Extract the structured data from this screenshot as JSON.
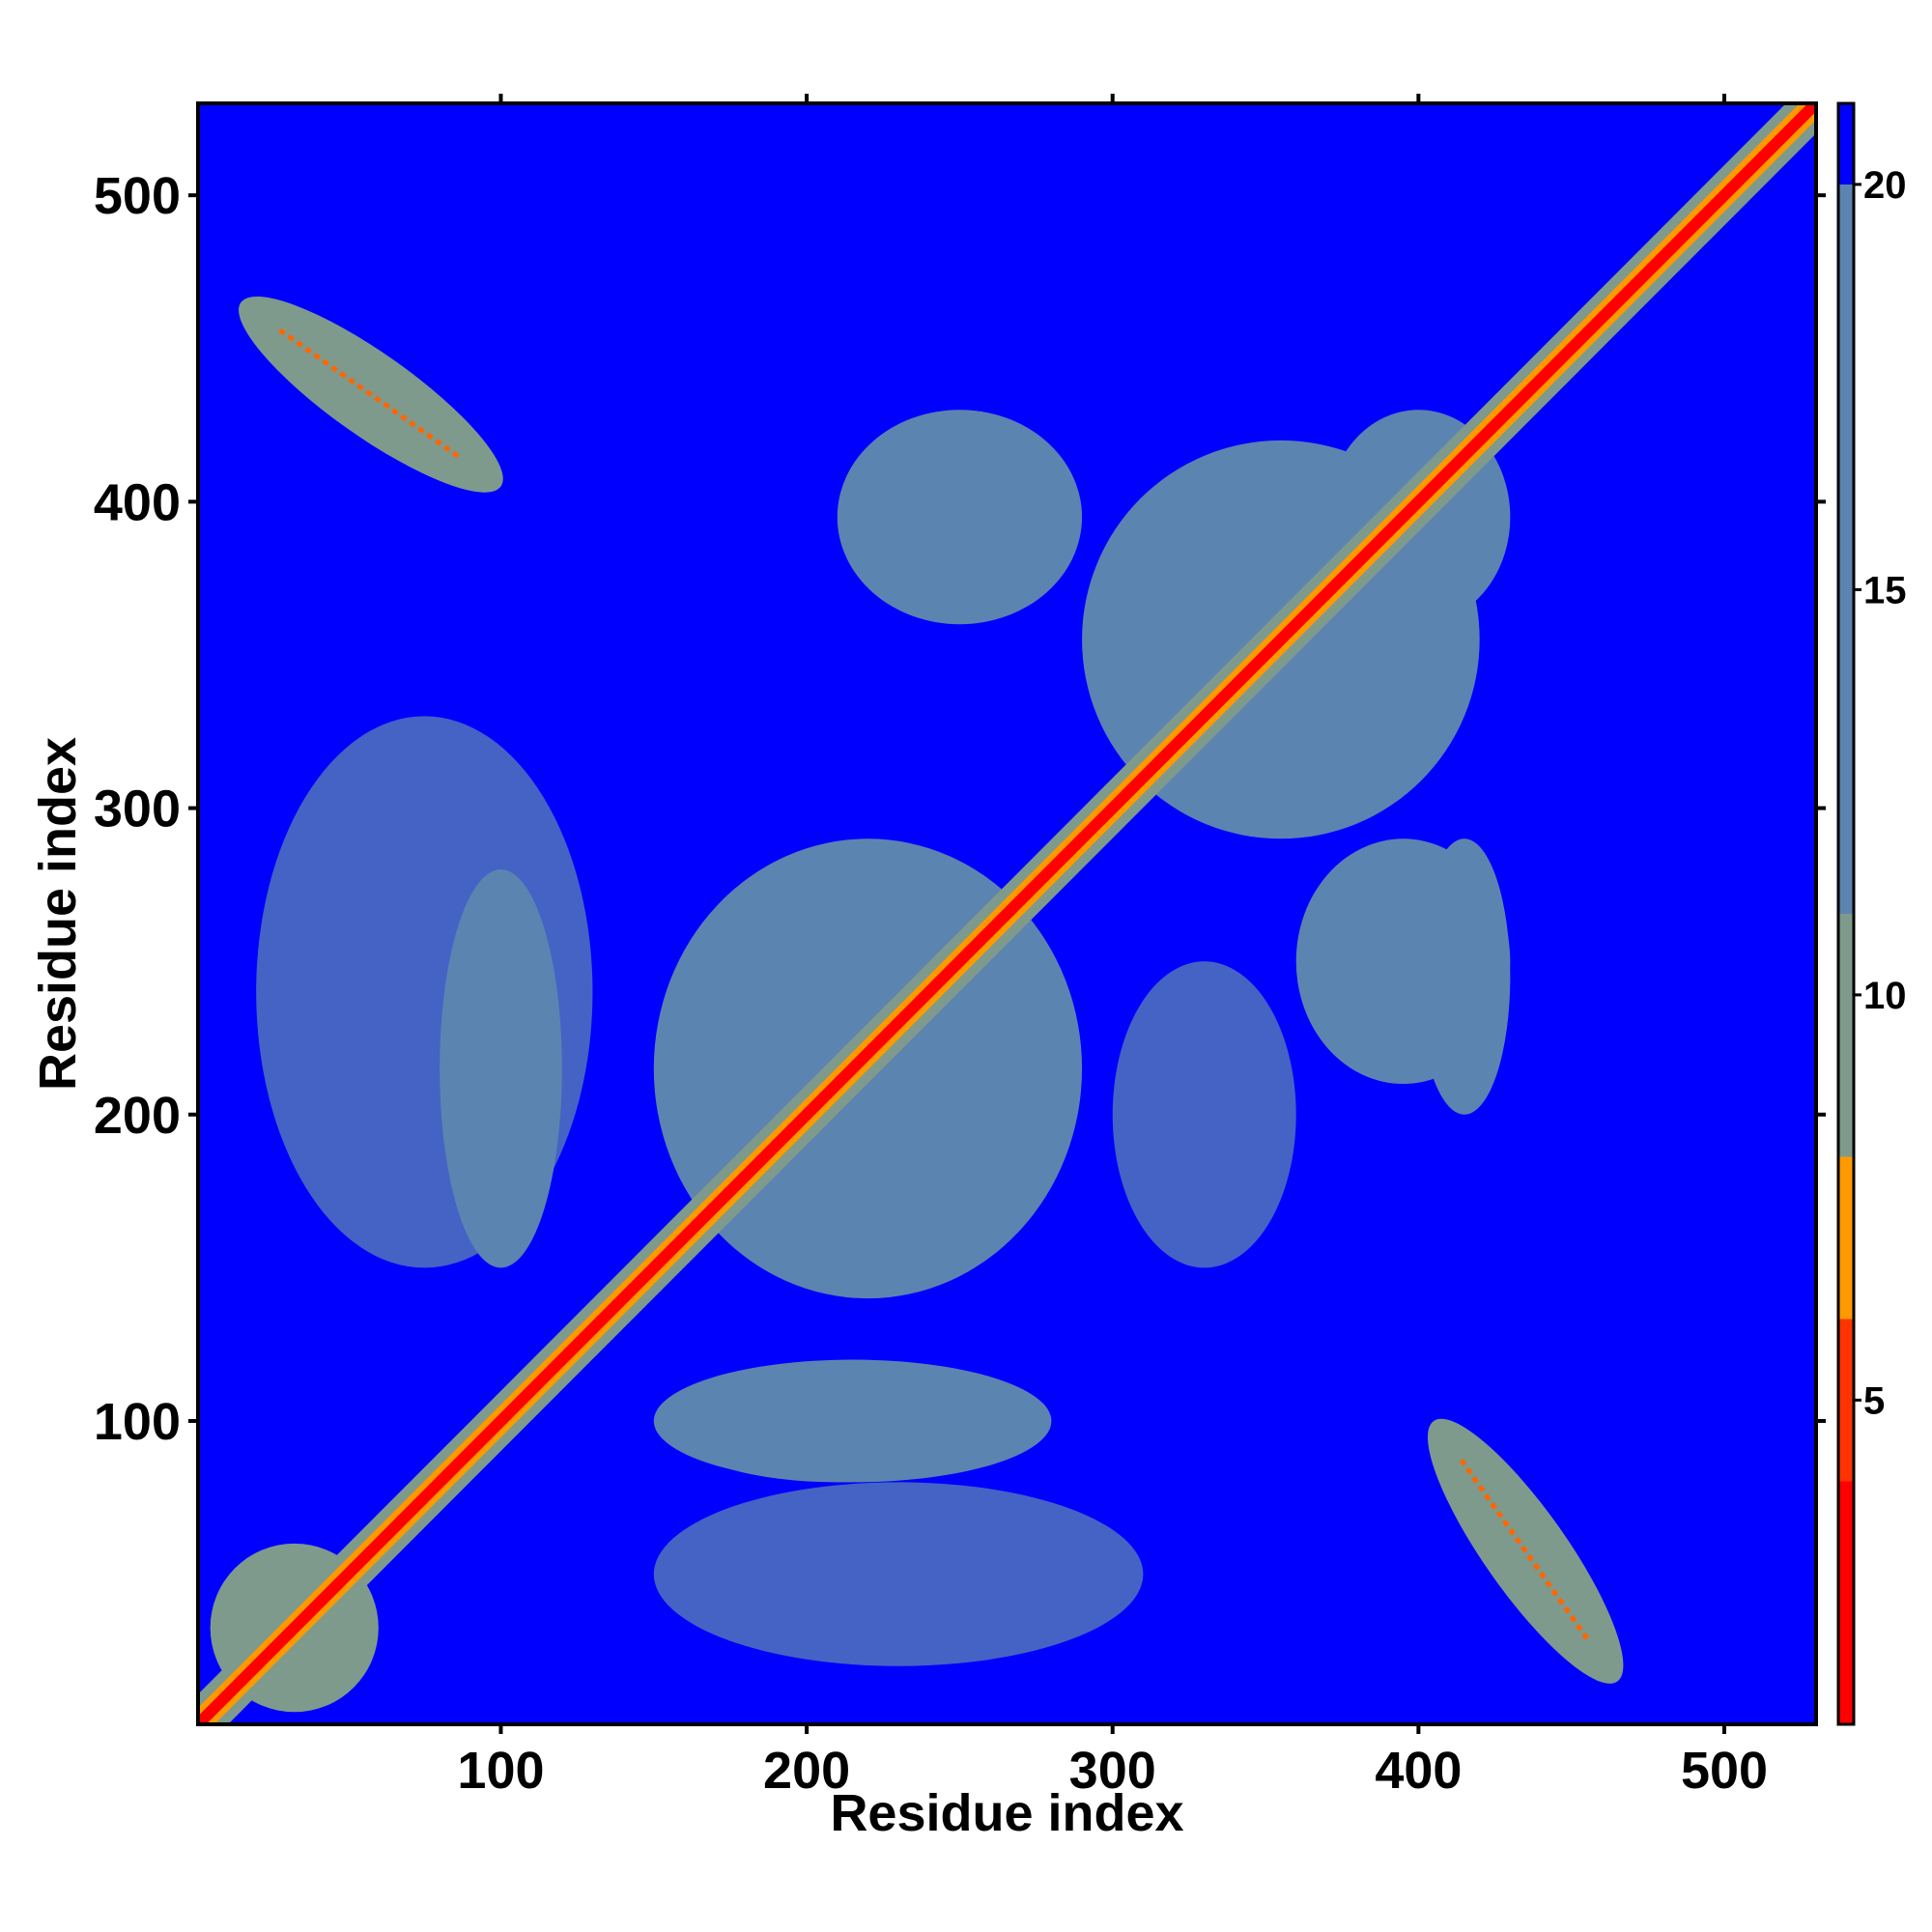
{
  "chart_data": {
    "type": "heatmap",
    "title": "",
    "xlabel": "Residue index",
    "ylabel": "Residue index",
    "xlim": [
      1,
      530
    ],
    "ylim": [
      1,
      530
    ],
    "x_ticks": [
      100,
      200,
      300,
      400,
      500
    ],
    "y_ticks": [
      100,
      200,
      300,
      400,
      500
    ],
    "x_tick_labels": [
      "100",
      "200",
      "300",
      "400",
      "500"
    ],
    "y_tick_labels": [
      "100",
      "200",
      "300",
      "400",
      "500"
    ],
    "colorbar": {
      "range": [
        1,
        21
      ],
      "ticks": [
        5,
        10,
        15,
        20
      ],
      "tick_labels": [
        "5",
        "10",
        "15",
        "20"
      ],
      "bands": [
        {
          "from": 1,
          "to": 4,
          "color": "#ff0000"
        },
        {
          "from": 4,
          "to": 6,
          "color": "#ff3300"
        },
        {
          "from": 6,
          "to": 8,
          "color": "#ff9900"
        },
        {
          "from": 8,
          "to": 11,
          "color": "#7e9a8c"
        },
        {
          "from": 11,
          "to": 20,
          "color": "#5b84b0"
        },
        {
          "from": 20,
          "to": 21,
          "color": "#0000ff"
        }
      ]
    },
    "background_color": "#0000ff",
    "diagonal_color": "#ff0000",
    "contact_regions": [
      {
        "x": [
          5,
          60
        ],
        "y": [
          5,
          60
        ],
        "level": "near"
      },
      {
        "x": [
          15,
          100
        ],
        "y": [
          405,
          465
        ],
        "level": "near",
        "axis": "anti"
      },
      {
        "x": [
          405,
          465
        ],
        "y": [
          15,
          100
        ],
        "level": "near",
        "axis": "anti"
      },
      {
        "x": [
          80,
          120
        ],
        "y": [
          150,
          280
        ],
        "level": "mid"
      },
      {
        "x": [
          150,
          280
        ],
        "y": [
          80,
          120
        ],
        "level": "mid"
      },
      {
        "x": [
          150,
          290
        ],
        "y": [
          140,
          290
        ],
        "level": "mid"
      },
      {
        "x": [
          210,
          290
        ],
        "y": [
          360,
          430
        ],
        "level": "mid"
      },
      {
        "x": [
          360,
          430
        ],
        "y": [
          210,
          290
        ],
        "level": "mid"
      },
      {
        "x": [
          290,
          420
        ],
        "y": [
          290,
          420
        ],
        "level": "mid"
      },
      {
        "x": [
          370,
          430
        ],
        "y": [
          360,
          430
        ],
        "level": "mid"
      },
      {
        "x": [
          400,
          430
        ],
        "y": [
          200,
          290
        ],
        "level": "mid"
      },
      {
        "x": [
          160,
          260
        ],
        "y": [
          80,
          110
        ],
        "level": "mid"
      },
      {
        "x": [
          300,
          360
        ],
        "y": [
          150,
          250
        ],
        "level": "far"
      },
      {
        "x": [
          20,
          130
        ],
        "y": [
          150,
          330
        ],
        "level": "far"
      },
      {
        "x": [
          150,
          310
        ],
        "y": [
          20,
          80
        ],
        "level": "far"
      }
    ]
  }
}
